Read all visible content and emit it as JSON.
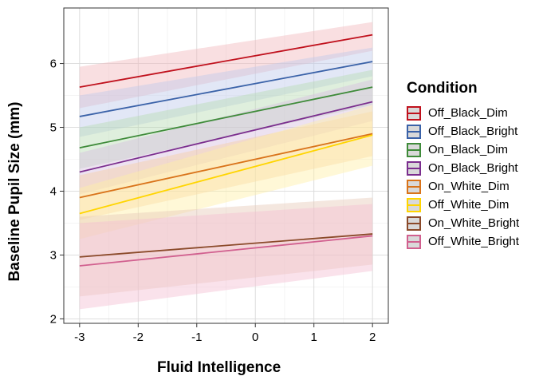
{
  "chart_data": {
    "type": "line",
    "xlabel": "Fluid Intelligence",
    "ylabel": "Baseline Pupil Size (mm)",
    "xlim": [
      -3.27,
      2.27
    ],
    "ylim": [
      1.93,
      6.87
    ],
    "xticks": [
      -3,
      -2,
      -1,
      0,
      1,
      2
    ],
    "yticks": [
      2,
      3,
      4,
      5,
      6
    ],
    "grid": true,
    "legend_title": "Condition",
    "legend_position": "right",
    "series": [
      {
        "name": "Off_Black_Dim",
        "color": "#c0111d",
        "fill": "#f2b8bd",
        "x": [
          -3,
          2
        ],
        "y": [
          5.63,
          6.45
        ],
        "ci_low": [
          5.3,
          6.2
        ],
        "ci_high": [
          5.95,
          6.65
        ]
      },
      {
        "name": "Off_Black_Bright",
        "color": "#3a62a8",
        "fill": "#bfc9ea",
        "x": [
          -3,
          2
        ],
        "y": [
          5.17,
          6.03
        ],
        "ci_low": [
          4.85,
          5.8
        ],
        "ci_high": [
          5.5,
          6.25
        ]
      },
      {
        "name": "On_Black_Dim",
        "color": "#3f8b3a",
        "fill": "#b9dcb3",
        "x": [
          -3,
          2
        ],
        "y": [
          4.68,
          5.63
        ],
        "ci_low": [
          4.35,
          5.35
        ],
        "ci_high": [
          5.0,
          5.9
        ]
      },
      {
        "name": "On_Black_Bright",
        "color": "#7b2e8e",
        "fill": "#d8bfe1",
        "x": [
          -3,
          2
        ],
        "y": [
          4.3,
          5.4
        ],
        "ci_low": [
          3.95,
          5.1
        ],
        "ci_high": [
          4.6,
          5.75
        ]
      },
      {
        "name": "On_White_Dim",
        "color": "#d9731a",
        "fill": "#f6cfa3",
        "x": [
          -3,
          2
        ],
        "y": [
          3.9,
          4.9
        ],
        "ci_low": [
          3.55,
          4.55
        ],
        "ci_high": [
          4.25,
          5.25
        ]
      },
      {
        "name": "Off_White_Dim",
        "color": "#ffd500",
        "fill": "#fff0a6",
        "x": [
          -3,
          2
        ],
        "y": [
          3.65,
          4.88
        ],
        "ci_low": [
          3.25,
          4.4
        ],
        "ci_high": [
          4.05,
          5.35
        ]
      },
      {
        "name": "On_White_Bright",
        "color": "#8b4a2a",
        "fill": "#e6c9b8",
        "x": [
          -3,
          2
        ],
        "y": [
          2.97,
          3.33
        ],
        "ci_low": [
          2.35,
          2.85
        ],
        "ci_high": [
          3.6,
          3.9
        ]
      },
      {
        "name": "Off_White_Bright",
        "color": "#d1608f",
        "fill": "#f3bfd2",
        "x": [
          -3,
          2
        ],
        "y": [
          2.83,
          3.3
        ],
        "ci_low": [
          2.15,
          2.75
        ],
        "ci_high": [
          3.5,
          3.8
        ]
      }
    ]
  }
}
